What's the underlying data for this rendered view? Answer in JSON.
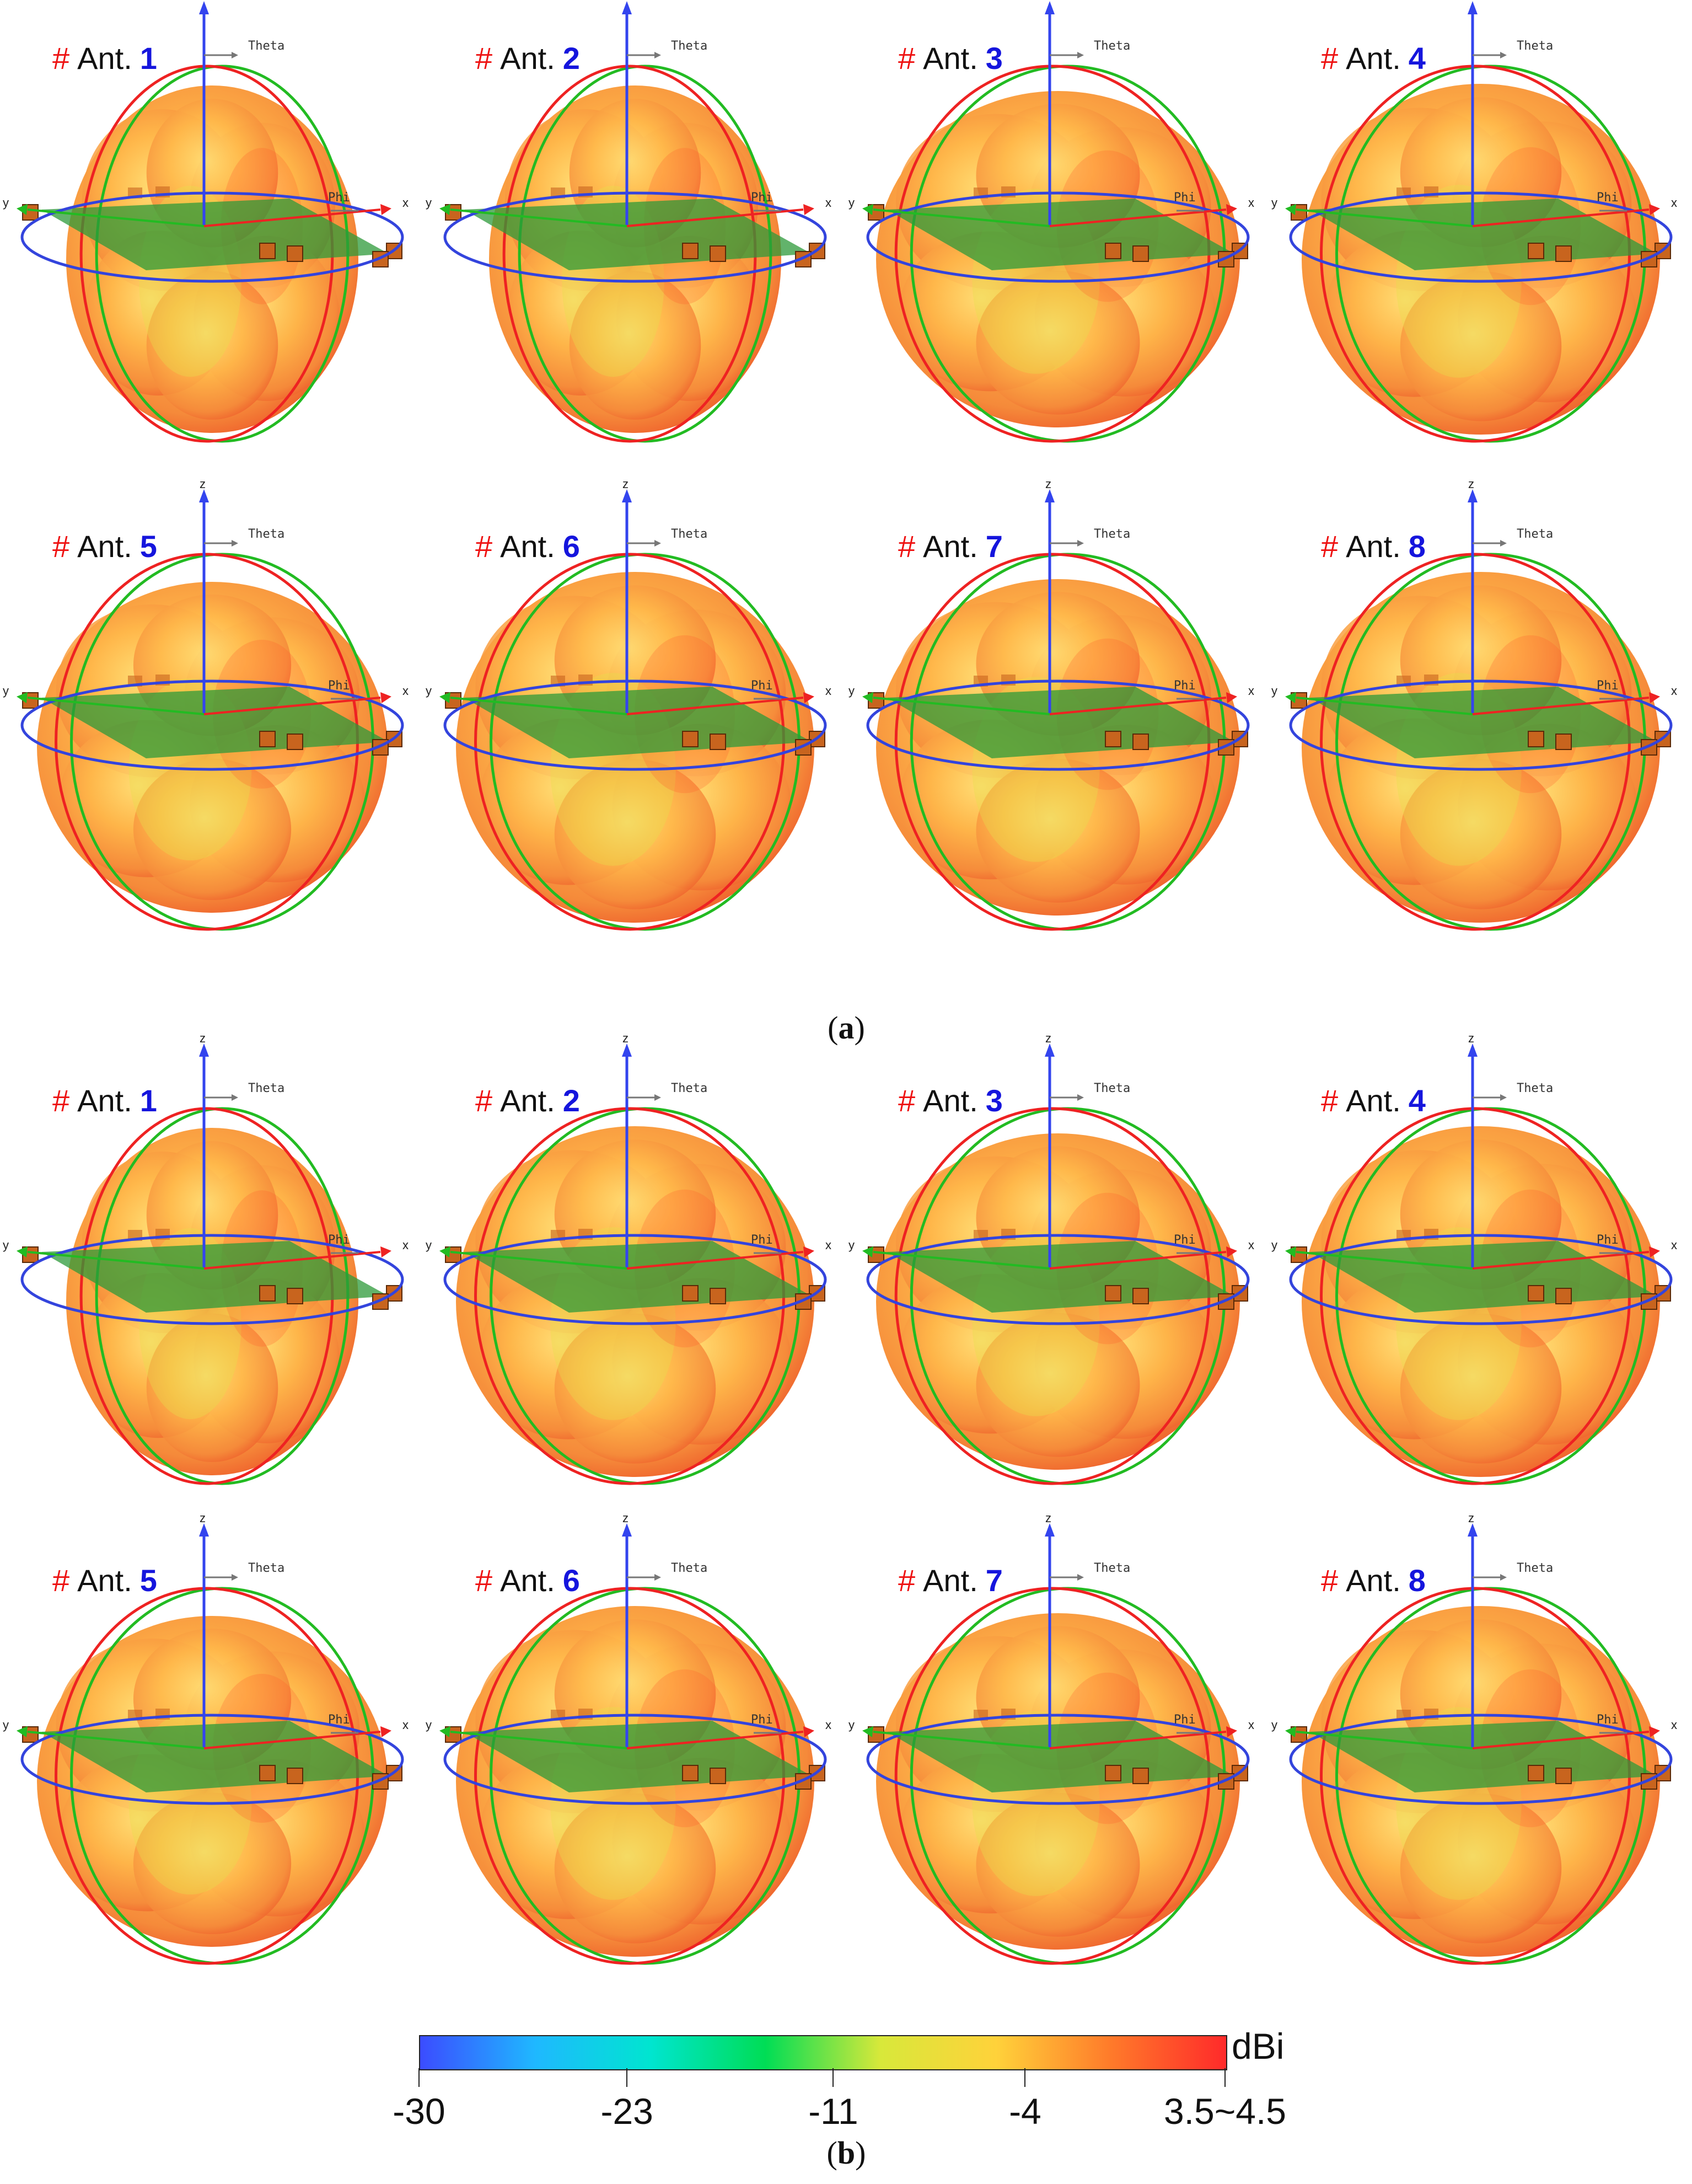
{
  "figure": {
    "caption_a": "a",
    "caption_b": "b",
    "antenna_prefix_hash": "#",
    "antenna_prefix_text": "Ant.",
    "axis_labels": {
      "z": "z",
      "theta": "Theta",
      "phi": "Phi",
      "x": "x",
      "y": "y"
    }
  },
  "panels_a": [
    {
      "number": "1",
      "shape": "tall"
    },
    {
      "number": "2",
      "shape": "tall"
    },
    {
      "number": "3",
      "shape": "wide"
    },
    {
      "number": "4",
      "shape": "round"
    },
    {
      "number": "5",
      "shape": "lobed"
    },
    {
      "number": "6",
      "shape": "round"
    },
    {
      "number": "7",
      "shape": "wide"
    },
    {
      "number": "8",
      "shape": "round"
    }
  ],
  "panels_b": [
    {
      "number": "1",
      "shape": "tall"
    },
    {
      "number": "2",
      "shape": "round"
    },
    {
      "number": "3",
      "shape": "wide"
    },
    {
      "number": "4",
      "shape": "round"
    },
    {
      "number": "5",
      "shape": "lobed"
    },
    {
      "number": "6",
      "shape": "round"
    },
    {
      "number": "7",
      "shape": "wide"
    },
    {
      "number": "8",
      "shape": "round"
    }
  ],
  "colorbar": {
    "unit": "dBi",
    "ticks": [
      "-30",
      "-23",
      "-11",
      "-4",
      "3.5~4.5"
    ],
    "tick_values": [
      -30,
      -23,
      -11,
      -4,
      4
    ],
    "range": [
      -30,
      4.5
    ],
    "gradient_colors": [
      "#3b4cff",
      "#1fb8ff",
      "#00e5d0",
      "#00dd55",
      "#d8e83a",
      "#ffd23a",
      "#ff7a2a",
      "#ff2a2a"
    ]
  },
  "colors": {
    "pattern_core": "#ffb84a",
    "pattern_edge": "#ee5a2a",
    "board": "#2d9a3a",
    "ring_red": "#ee2222",
    "ring_green": "#22bb22",
    "ring_blue": "#3344dd",
    "axis_blue": "#3344ee",
    "port": "#c8641e"
  }
}
